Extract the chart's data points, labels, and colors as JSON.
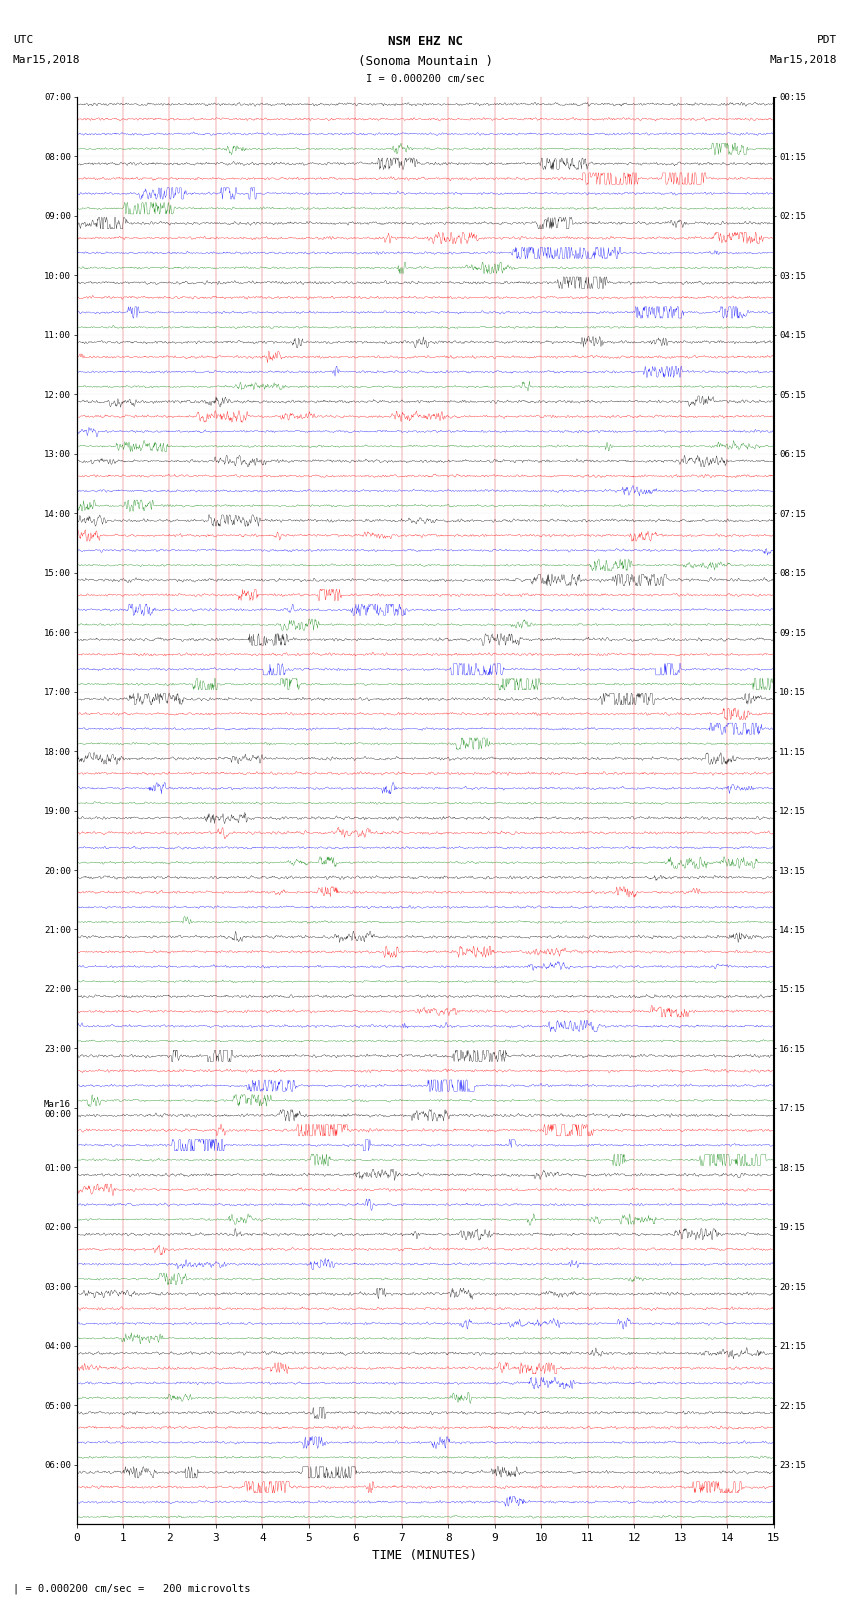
{
  "title_line1": "NSM EHZ NC",
  "title_line2": "(Sonoma Mountain )",
  "scale_label": "I = 0.000200 cm/sec",
  "left_label_top": "UTC",
  "left_label_date": "Mar15,2018",
  "right_label_top": "PDT",
  "right_label_date": "Mar15,2018",
  "bottom_label": "TIME (MINUTES)",
  "footer_label": "| = 0.000200 cm/sec =   200 microvolts",
  "xlabel_ticks": [
    0,
    1,
    2,
    3,
    4,
    5,
    6,
    7,
    8,
    9,
    10,
    11,
    12,
    13,
    14,
    15
  ],
  "utc_row_labels": [
    "07:00",
    "08:00",
    "09:00",
    "10:00",
    "11:00",
    "12:00",
    "13:00",
    "14:00",
    "15:00",
    "16:00",
    "17:00",
    "18:00",
    "19:00",
    "20:00",
    "21:00",
    "22:00",
    "23:00",
    "Mar16\n00:00",
    "01:00",
    "02:00",
    "03:00",
    "04:00",
    "05:00",
    "06:00"
  ],
  "pdt_row_labels": [
    "00:15",
    "01:15",
    "02:15",
    "03:15",
    "04:15",
    "05:15",
    "06:15",
    "07:15",
    "08:15",
    "09:15",
    "10:15",
    "11:15",
    "12:15",
    "13:15",
    "14:15",
    "15:15",
    "16:15",
    "17:15",
    "18:15",
    "19:15",
    "20:15",
    "21:15",
    "22:15",
    "23:15"
  ],
  "trace_colors": [
    "black",
    "red",
    "blue",
    "green"
  ],
  "bg_color": "white",
  "fig_width": 8.5,
  "fig_height": 16.13,
  "dpi": 100,
  "n_groups": 24,
  "n_minutes": 15,
  "samples_per_minute": 100,
  "vline_color": "#cc0000"
}
